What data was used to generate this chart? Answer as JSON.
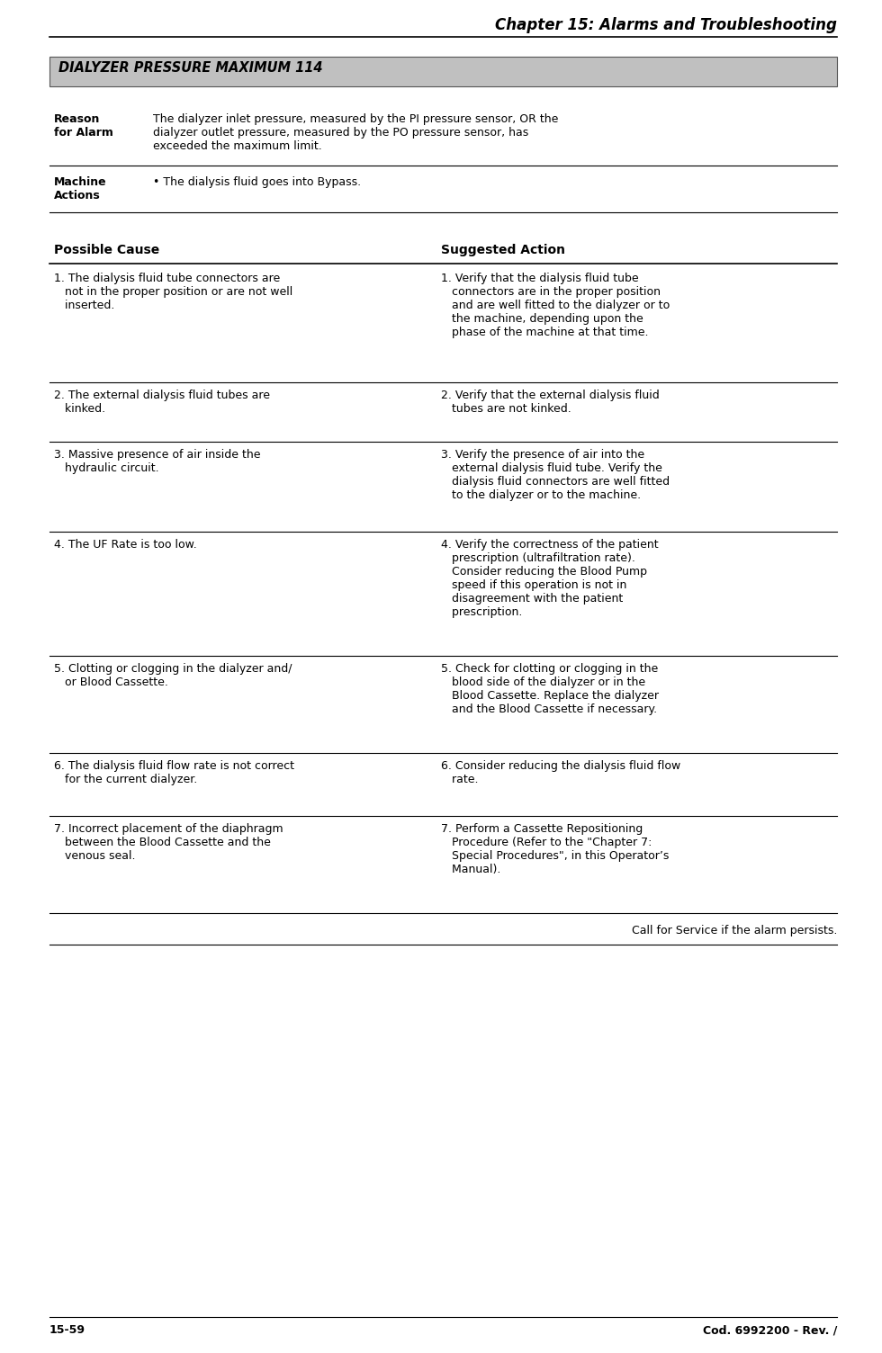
{
  "page_title": "Chapter 15: Alarms and Troubleshooting",
  "alarm_title": "DIALYZER PRESSURE MAXIMUM 114",
  "reason_label": "Reason\nfor Alarm",
  "reason_text": "The dialyzer inlet pressure, measured by the PI pressure sensor, OR the\ndialyzer outlet pressure, measured by the PO pressure sensor, has\nexceeded the maximum limit.",
  "machine_label": "Machine\nActions",
  "machine_text": "• The dialysis fluid goes into Bypass.",
  "col1_header": "Possible Cause",
  "col2_header": "Suggested Action",
  "rows": [
    {
      "cause": "1. The dialysis fluid tube connectors are\n   not in the proper position or are not well\n   inserted.",
      "action": "1. Verify that the dialysis fluid tube\n   connectors are in the proper position\n   and are well fitted to the dialyzer or to\n   the machine, depending upon the\n   phase of the machine at that time."
    },
    {
      "cause": "2. The external dialysis fluid tubes are\n   kinked.",
      "action": "2. Verify that the external dialysis fluid\n   tubes are not kinked."
    },
    {
      "cause": "3. Massive presence of air inside the\n   hydraulic circuit.",
      "action": "3. Verify the presence of air into the\n   external dialysis fluid tube. Verify the\n   dialysis fluid connectors are well fitted\n   to the dialyzer or to the machine."
    },
    {
      "cause": "4. The UF Rate is too low.",
      "action": "4. Verify the correctness of the patient\n   prescription (ultrafiltration rate).\n   Consider reducing the Blood Pump\n   speed if this operation is not in\n   disagreement with the patient\n   prescription."
    },
    {
      "cause": "5. Clotting or clogging in the dialyzer and/\n   or Blood Cassette.",
      "action": "5. Check for clotting or clogging in the\n   blood side of the dialyzer or in the\n   Blood Cassette. Replace the dialyzer\n   and the Blood Cassette if necessary."
    },
    {
      "cause": "6. The dialysis fluid flow rate is not correct\n   for the current dialyzer.",
      "action": "6. Consider reducing the dialysis fluid flow\n   rate."
    },
    {
      "cause": "7. Incorrect placement of the diaphragm\n   between the Blood Cassette and the\n   venous seal.",
      "action": "7. Perform a Cassette Repositioning\n   Procedure (Refer to the \"Chapter 7:\n   Special Procedures\", in this Operator’s\n   Manual)."
    }
  ],
  "footer_call": "Call for Service if the alarm persists.",
  "footer_left": "15-59",
  "footer_right": "Cod. 6992200 - Rev. /",
  "bg_color": "#ffffff",
  "alarm_bg": "#c0c0c0",
  "line_color": "#000000",
  "title_font_size": 12,
  "alarm_font_size": 10.5,
  "body_font_size": 9,
  "label_font_size": 9,
  "header_font_size": 10
}
